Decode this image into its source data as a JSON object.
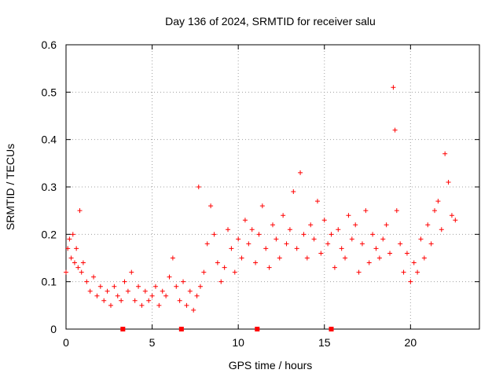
{
  "chart_data": {
    "type": "scatter",
    "title": "Day 136 of 2024, SRMTID for receiver salu",
    "xlabel": "GPS time / hours",
    "ylabel": "SRMTID / TECUs",
    "xlim": [
      0,
      24
    ],
    "ylim": [
      0,
      0.6
    ],
    "xticks": [
      0,
      5,
      10,
      15,
      20
    ],
    "yticks": [
      0,
      0.1,
      0.2,
      0.3,
      0.4,
      0.5,
      0.6
    ],
    "ytick_labels": [
      "0",
      "0.1",
      "0.2",
      "0.3",
      "0.4",
      "0.5",
      "0.6"
    ],
    "xtick_labels": [
      "0",
      "5",
      "10",
      "15",
      "20"
    ],
    "grid": true,
    "marker": "plus",
    "color": "#ff0000",
    "series": [
      {
        "name": "SRMTID",
        "x": [
          0.0,
          0.1,
          0.2,
          0.3,
          0.4,
          0.5,
          0.6,
          0.7,
          0.8,
          0.9,
          1.0,
          1.2,
          1.4,
          1.6,
          1.8,
          2.0,
          2.2,
          2.4,
          2.6,
          2.8,
          3.0,
          3.2,
          3.4,
          3.6,
          3.8,
          4.0,
          4.2,
          4.4,
          4.6,
          4.8,
          5.0,
          5.2,
          5.4,
          5.6,
          5.8,
          6.0,
          6.2,
          6.4,
          6.6,
          6.8,
          7.0,
          7.2,
          7.4,
          7.6,
          7.7,
          7.8,
          8.0,
          8.2,
          8.4,
          8.6,
          8.8,
          9.0,
          9.2,
          9.4,
          9.6,
          9.8,
          10.0,
          10.2,
          10.4,
          10.6,
          10.8,
          11.0,
          11.2,
          11.4,
          11.6,
          11.8,
          12.0,
          12.2,
          12.4,
          12.6,
          12.8,
          13.0,
          13.2,
          13.4,
          13.6,
          13.8,
          14.0,
          14.2,
          14.4,
          14.6,
          14.8,
          15.0,
          15.2,
          15.4,
          15.6,
          15.8,
          16.0,
          16.2,
          16.4,
          16.6,
          16.8,
          17.0,
          17.2,
          17.4,
          17.6,
          17.8,
          18.0,
          18.2,
          18.4,
          18.6,
          18.8,
          19.0,
          19.1,
          19.2,
          19.4,
          19.6,
          19.8,
          20.0,
          20.2,
          20.4,
          20.6,
          20.8,
          21.0,
          21.2,
          21.4,
          21.6,
          21.8,
          22.0,
          22.2,
          22.4,
          22.6
        ],
        "y": [
          0.12,
          0.17,
          0.19,
          0.15,
          0.2,
          0.14,
          0.17,
          0.13,
          0.25,
          0.12,
          0.14,
          0.1,
          0.08,
          0.11,
          0.07,
          0.09,
          0.06,
          0.08,
          0.05,
          0.09,
          0.07,
          0.06,
          0.1,
          0.08,
          0.12,
          0.06,
          0.09,
          0.05,
          0.08,
          0.06,
          0.07,
          0.09,
          0.05,
          0.08,
          0.07,
          0.11,
          0.15,
          0.09,
          0.06,
          0.1,
          0.05,
          0.08,
          0.04,
          0.07,
          0.3,
          0.09,
          0.12,
          0.18,
          0.26,
          0.2,
          0.14,
          0.1,
          0.13,
          0.21,
          0.17,
          0.12,
          0.19,
          0.15,
          0.23,
          0.18,
          0.21,
          0.14,
          0.2,
          0.26,
          0.17,
          0.13,
          0.22,
          0.19,
          0.15,
          0.24,
          0.18,
          0.21,
          0.29,
          0.17,
          0.33,
          0.2,
          0.15,
          0.22,
          0.19,
          0.27,
          0.16,
          0.23,
          0.18,
          0.2,
          0.13,
          0.21,
          0.17,
          0.15,
          0.24,
          0.19,
          0.22,
          0.12,
          0.18,
          0.25,
          0.14,
          0.2,
          0.17,
          0.15,
          0.19,
          0.22,
          0.16,
          0.51,
          0.42,
          0.25,
          0.18,
          0.12,
          0.16,
          0.1,
          0.14,
          0.12,
          0.19,
          0.15,
          0.22,
          0.18,
          0.25,
          0.27,
          0.21,
          0.37,
          0.31,
          0.24,
          0.23
        ]
      }
    ],
    "baseline_markers_x": [
      3.3,
      6.7,
      11.1,
      15.4
    ]
  }
}
